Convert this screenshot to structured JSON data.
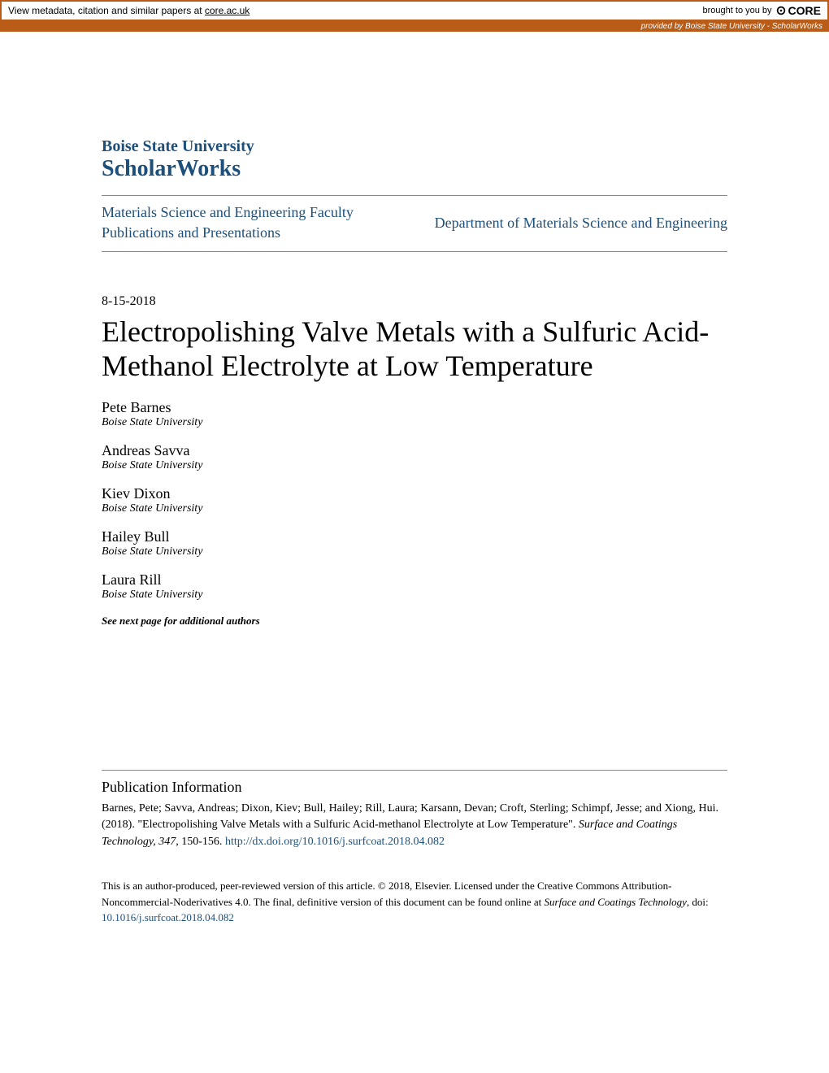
{
  "core_banner": {
    "left_text_prefix": "View metadata, citation and similar papers at ",
    "left_link_text": "core.ac.uk",
    "brought_to_you": "brought to you by",
    "logo_text": "CORE",
    "provided_by_prefix": "provided by ",
    "provided_by_source": "Boise State University - ScholarWorks"
  },
  "header": {
    "institution": "Boise State University",
    "repository": "ScholarWorks",
    "collection_left": "Materials Science and Engineering Faculty Publications and Presentations",
    "department_right": "Department of Materials Science and Engineering"
  },
  "article": {
    "date": "8-15-2018",
    "title": "Electropolishing Valve Metals with a Sulfuric Acid-Methanol Electrolyte at Low Temperature",
    "authors": [
      {
        "name": "Pete Barnes",
        "affiliation": "Boise State University"
      },
      {
        "name": "Andreas Savva",
        "affiliation": "Boise State University"
      },
      {
        "name": "Kiev Dixon",
        "affiliation": "Boise State University"
      },
      {
        "name": "Hailey Bull",
        "affiliation": "Boise State University"
      },
      {
        "name": "Laura Rill",
        "affiliation": "Boise State University"
      }
    ],
    "next_page_note": "See next page for additional authors"
  },
  "publication_info": {
    "heading": "Publication Information",
    "citation_authors": "Barnes, Pete; Savva, Andreas; Dixon, Kiev; Bull, Hailey; Rill, Laura; Karsann, Devan; Croft, Sterling; Schimpf, Jesse; and Xiong, Hui. (2018). \"Electropolishing Valve Metals with a Sulfuric Acid-methanol Electrolyte at Low Temperature\". ",
    "journal_italic": "Surface and Coatings Technology, 347",
    "pages": ", 150-156. ",
    "doi_link": "http://dx.doi.org/10.1016/j.surfcoat.2018.04.082"
  },
  "license": {
    "text_part1": "This is an author-produced, peer-reviewed version of this article. © 2018, Elsevier. Licensed under the Creative Commons Attribution-Noncommercial-Noderivatives 4.0. The final, definitive version of this document can be found online at ",
    "journal_italic": "Surface and Coatings Technology",
    "text_part2": ", doi: ",
    "doi_link": "10.1016/j.surfcoat.2018.04.082"
  },
  "colors": {
    "accent_orange": "#b85c17",
    "link_blue": "#1d4f7a",
    "text_black": "#000000",
    "bg_white": "#ffffff"
  }
}
